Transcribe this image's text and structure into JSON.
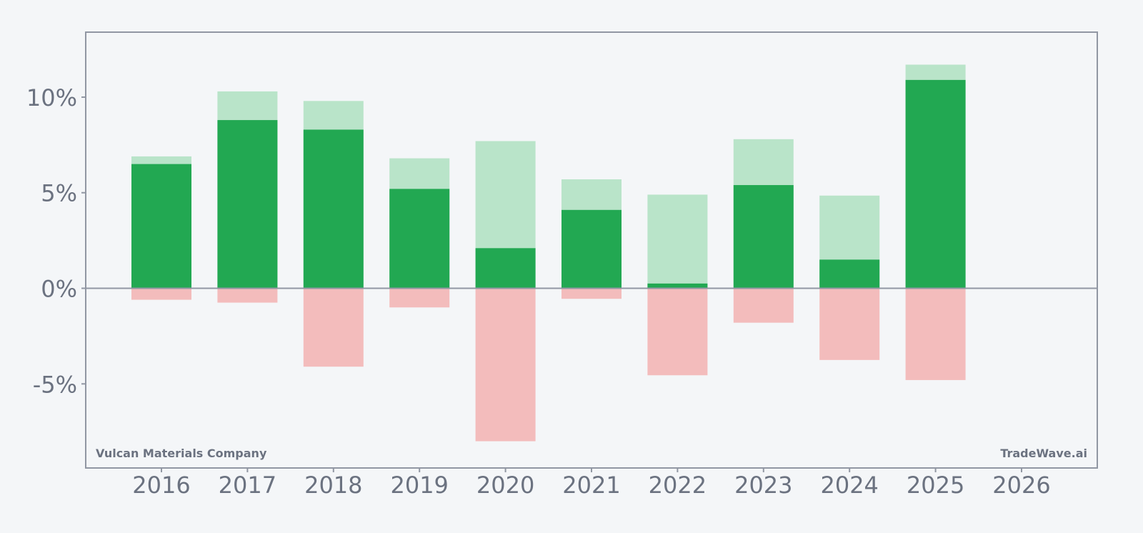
{
  "chart_data": {
    "type": "bar",
    "company": "Vulcan Materials Company",
    "brand": "TradeWave.ai",
    "categories": [
      "2016",
      "2017",
      "2018",
      "2019",
      "2020",
      "2021",
      "2022",
      "2023",
      "2024",
      "2025",
      "2026"
    ],
    "yticks": [
      10,
      5,
      0,
      -5
    ],
    "ytick_labels": [
      "10%",
      "5%",
      "0%",
      "-5%"
    ],
    "ylim": [
      -9.4,
      13.4
    ],
    "series": [
      {
        "key": "dark_green",
        "values": [
          6.5,
          8.8,
          8.3,
          5.2,
          2.1,
          4.1,
          0.25,
          5.4,
          1.5,
          10.9,
          null
        ]
      },
      {
        "key": "light_green",
        "values": [
          6.9,
          10.3,
          9.8,
          6.8,
          7.7,
          5.7,
          4.9,
          7.8,
          4.85,
          11.7,
          null
        ]
      },
      {
        "key": "red",
        "values": [
          -0.6,
          -0.75,
          -4.1,
          -1.0,
          -8.0,
          -0.55,
          -4.55,
          -1.8,
          -3.75,
          -4.8,
          null
        ]
      }
    ],
    "colors": {
      "background": "#f4f6f8",
      "dark_green": "#22a852",
      "light_green": "#b9e4c9",
      "red": "#f3bcbc",
      "axis": "#9197a3",
      "text": "#6b7280"
    },
    "grid": false,
    "legend": "none"
  }
}
